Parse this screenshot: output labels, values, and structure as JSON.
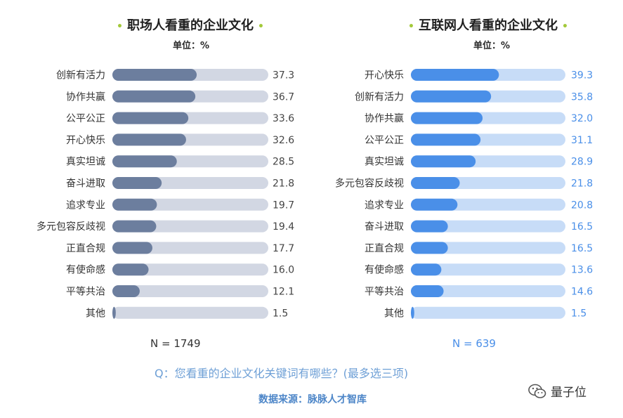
{
  "chart_data": [
    {
      "type": "bar",
      "orientation": "horizontal",
      "title": "职场人看重的企业文化",
      "unit_label": "单位：%",
      "categories": [
        "创新有活力",
        "协作共赢",
        "公平公正",
        "开心快乐",
        "真实坦诚",
        "奋斗进取",
        "追求专业",
        "多元包容反歧视",
        "正直合规",
        "有使命感",
        "平等共治",
        "其他"
      ],
      "values": [
        37.3,
        36.7,
        33.6,
        32.6,
        28.5,
        21.8,
        19.7,
        19.4,
        17.7,
        16.0,
        12.1,
        1.5
      ],
      "value_labels": [
        "37.3",
        "36.7",
        "33.6",
        "32.6",
        "28.5",
        "21.8",
        "19.7",
        "19.4",
        "17.7",
        "16.0",
        "12.1",
        "1.5"
      ],
      "xlim": [
        0,
        100
      ],
      "sample_label": "N = 1749",
      "colors": {
        "bar": "#6c7e9e",
        "track": "#d2d7e3",
        "value_text": "#444444",
        "sample_text": "#333333"
      }
    },
    {
      "type": "bar",
      "orientation": "horizontal",
      "title": "互联网人看重的企业文化",
      "unit_label": "单位：%",
      "categories": [
        "开心快乐",
        "创新有活力",
        "协作共赢",
        "公平公正",
        "真实坦诚",
        "多元包容反歧视",
        "追求专业",
        "奋斗进取",
        "正直合规",
        "有使命感",
        "平等共治",
        "其他"
      ],
      "values": [
        39.3,
        35.8,
        32.0,
        31.1,
        28.9,
        21.8,
        20.8,
        16.5,
        16.5,
        13.6,
        14.6,
        1.5
      ],
      "value_labels": [
        "39.3",
        "35.8",
        "32.0",
        "31.1",
        "28.9",
        "21.8",
        "20.8",
        "16.5",
        "16.5",
        "13.6",
        "14.6",
        "1.5"
      ],
      "xlim": [
        0,
        100
      ],
      "sample_label": "N = 639",
      "colors": {
        "bar": "#4a8fe8",
        "track": "#c7dcf7",
        "value_text": "#4a8fe8",
        "sample_text": "#4a8fe8"
      }
    }
  ],
  "footer": {
    "question": "Q：您看重的企业文化关键词有哪些？(最多选三项)",
    "source": "数据来源：脉脉人才智库",
    "brand": "量子位",
    "brand_icon": "wechat-icon"
  },
  "colors": {
    "title_dot": "#a3c93a",
    "question": "#6fa0d6",
    "source": "#4d86c8"
  }
}
